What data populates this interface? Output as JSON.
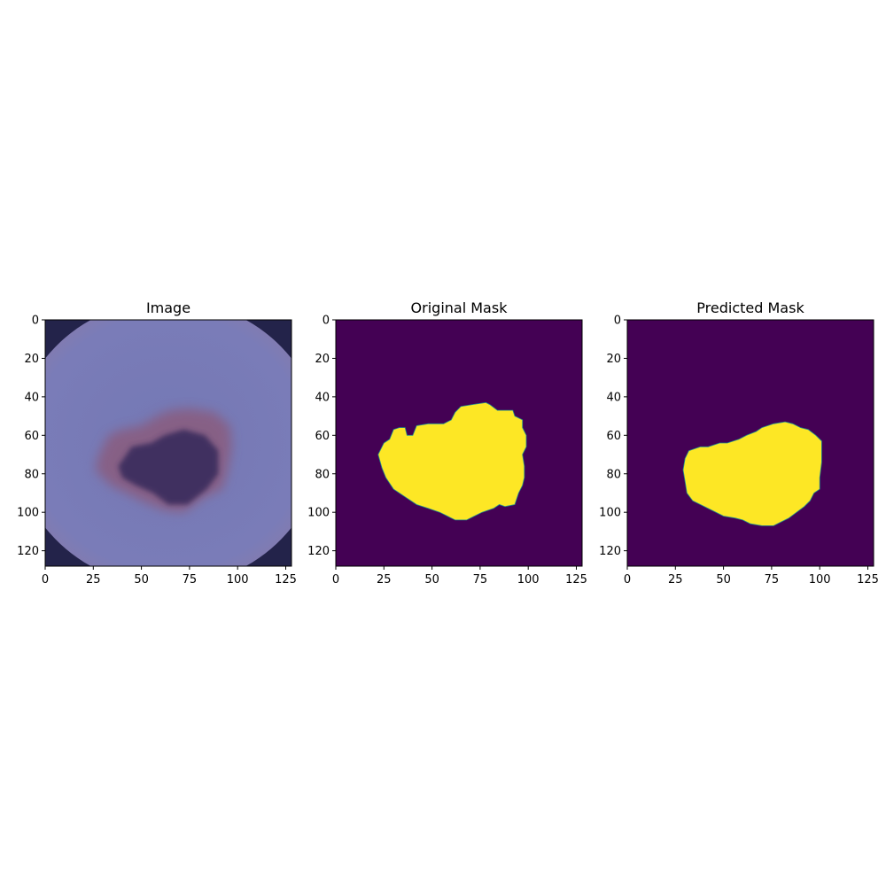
{
  "figure": {
    "panels": [
      {
        "key": "image",
        "title": "Image"
      },
      {
        "key": "original",
        "title": "Original Mask"
      },
      {
        "key": "predicted",
        "title": "Predicted Mask"
      }
    ]
  },
  "chart_data": [
    {
      "type": "heatmap",
      "title": "Image",
      "content": "dermoscopy-image",
      "xlim": [
        0,
        128
      ],
      "ylim": [
        128,
        0
      ],
      "xticks": [
        0,
        25,
        50,
        75,
        100,
        125
      ],
      "yticks": [
        0,
        20,
        40,
        60,
        80,
        100,
        120
      ],
      "colors": {
        "background": "#7478b4",
        "corner": "#23234a",
        "lesion": "#3d2f5e",
        "pigment": "#8b5a7a"
      },
      "lesion_outline": [
        [
          28,
          70
        ],
        [
          33,
          60
        ],
        [
          40,
          57
        ],
        [
          50,
          55
        ],
        [
          58,
          50
        ],
        [
          65,
          47
        ],
        [
          75,
          46
        ],
        [
          88,
          48
        ],
        [
          96,
          55
        ],
        [
          97,
          66
        ],
        [
          95,
          78
        ],
        [
          92,
          88
        ],
        [
          83,
          92
        ],
        [
          72,
          100
        ],
        [
          62,
          99
        ],
        [
          52,
          95
        ],
        [
          42,
          90
        ],
        [
          34,
          86
        ],
        [
          26,
          78
        ]
      ],
      "lesion_core": [
        [
          38,
          76
        ],
        [
          45,
          66
        ],
        [
          55,
          64
        ],
        [
          62,
          60
        ],
        [
          72,
          57
        ],
        [
          83,
          60
        ],
        [
          90,
          68
        ],
        [
          90,
          80
        ],
        [
          84,
          88
        ],
        [
          74,
          96
        ],
        [
          64,
          96
        ],
        [
          56,
          90
        ],
        [
          47,
          86
        ],
        [
          40,
          82
        ]
      ]
    },
    {
      "type": "heatmap",
      "title": "Original Mask",
      "content": "binary-mask",
      "xlim": [
        0,
        128
      ],
      "ylim": [
        128,
        0
      ],
      "xticks": [
        0,
        25,
        50,
        75,
        100,
        125
      ],
      "yticks": [
        0,
        20,
        40,
        60,
        80,
        100,
        120
      ],
      "colors": {
        "background": "#440154",
        "foreground": "#fde725"
      },
      "region": [
        [
          22,
          70
        ],
        [
          25,
          64
        ],
        [
          28,
          62
        ],
        [
          30,
          57
        ],
        [
          33,
          56
        ],
        [
          36,
          56
        ],
        [
          37,
          60
        ],
        [
          40,
          60
        ],
        [
          42,
          55
        ],
        [
          48,
          54
        ],
        [
          56,
          54
        ],
        [
          60,
          52
        ],
        [
          62,
          48
        ],
        [
          65,
          45
        ],
        [
          71,
          44
        ],
        [
          78,
          43
        ],
        [
          80,
          44
        ],
        [
          84,
          47
        ],
        [
          88,
          47
        ],
        [
          92,
          47
        ],
        [
          93,
          50
        ],
        [
          97,
          52
        ],
        [
          97,
          56
        ],
        [
          99,
          60
        ],
        [
          99,
          66
        ],
        [
          97,
          70
        ],
        [
          98,
          76
        ],
        [
          98,
          82
        ],
        [
          97,
          86
        ],
        [
          95,
          90
        ],
        [
          93,
          96
        ],
        [
          88,
          97
        ],
        [
          85,
          96
        ],
        [
          82,
          98
        ],
        [
          76,
          100
        ],
        [
          72,
          102
        ],
        [
          68,
          104
        ],
        [
          62,
          104
        ],
        [
          58,
          102
        ],
        [
          54,
          100
        ],
        [
          48,
          98
        ],
        [
          42,
          96
        ],
        [
          36,
          92
        ],
        [
          30,
          88
        ],
        [
          26,
          82
        ],
        [
          24,
          77
        ]
      ]
    },
    {
      "type": "heatmap",
      "title": "Predicted Mask",
      "content": "binary-mask",
      "xlim": [
        0,
        128
      ],
      "ylim": [
        128,
        0
      ],
      "xticks": [
        0,
        25,
        50,
        75,
        100,
        125
      ],
      "yticks": [
        0,
        20,
        40,
        60,
        80,
        100,
        120
      ],
      "colors": {
        "background": "#440154",
        "foreground": "#fde725"
      },
      "region": [
        [
          30,
          72
        ],
        [
          32,
          68
        ],
        [
          38,
          66
        ],
        [
          42,
          66
        ],
        [
          48,
          64
        ],
        [
          52,
          64
        ],
        [
          58,
          62
        ],
        [
          62,
          60
        ],
        [
          67,
          58
        ],
        [
          70,
          56
        ],
        [
          76,
          54
        ],
        [
          82,
          53
        ],
        [
          86,
          54
        ],
        [
          90,
          56
        ],
        [
          94,
          57
        ],
        [
          98,
          60
        ],
        [
          101,
          63
        ],
        [
          101,
          74
        ],
        [
          100,
          82
        ],
        [
          100,
          88
        ],
        [
          97,
          90
        ],
        [
          95,
          94
        ],
        [
          92,
          97
        ],
        [
          88,
          100
        ],
        [
          84,
          103
        ],
        [
          80,
          105
        ],
        [
          76,
          107
        ],
        [
          70,
          107
        ],
        [
          64,
          106
        ],
        [
          60,
          104
        ],
        [
          56,
          103
        ],
        [
          50,
          102
        ],
        [
          44,
          99
        ],
        [
          38,
          96
        ],
        [
          34,
          94
        ],
        [
          31,
          90
        ],
        [
          30,
          84
        ],
        [
          29,
          78
        ]
      ]
    }
  ]
}
